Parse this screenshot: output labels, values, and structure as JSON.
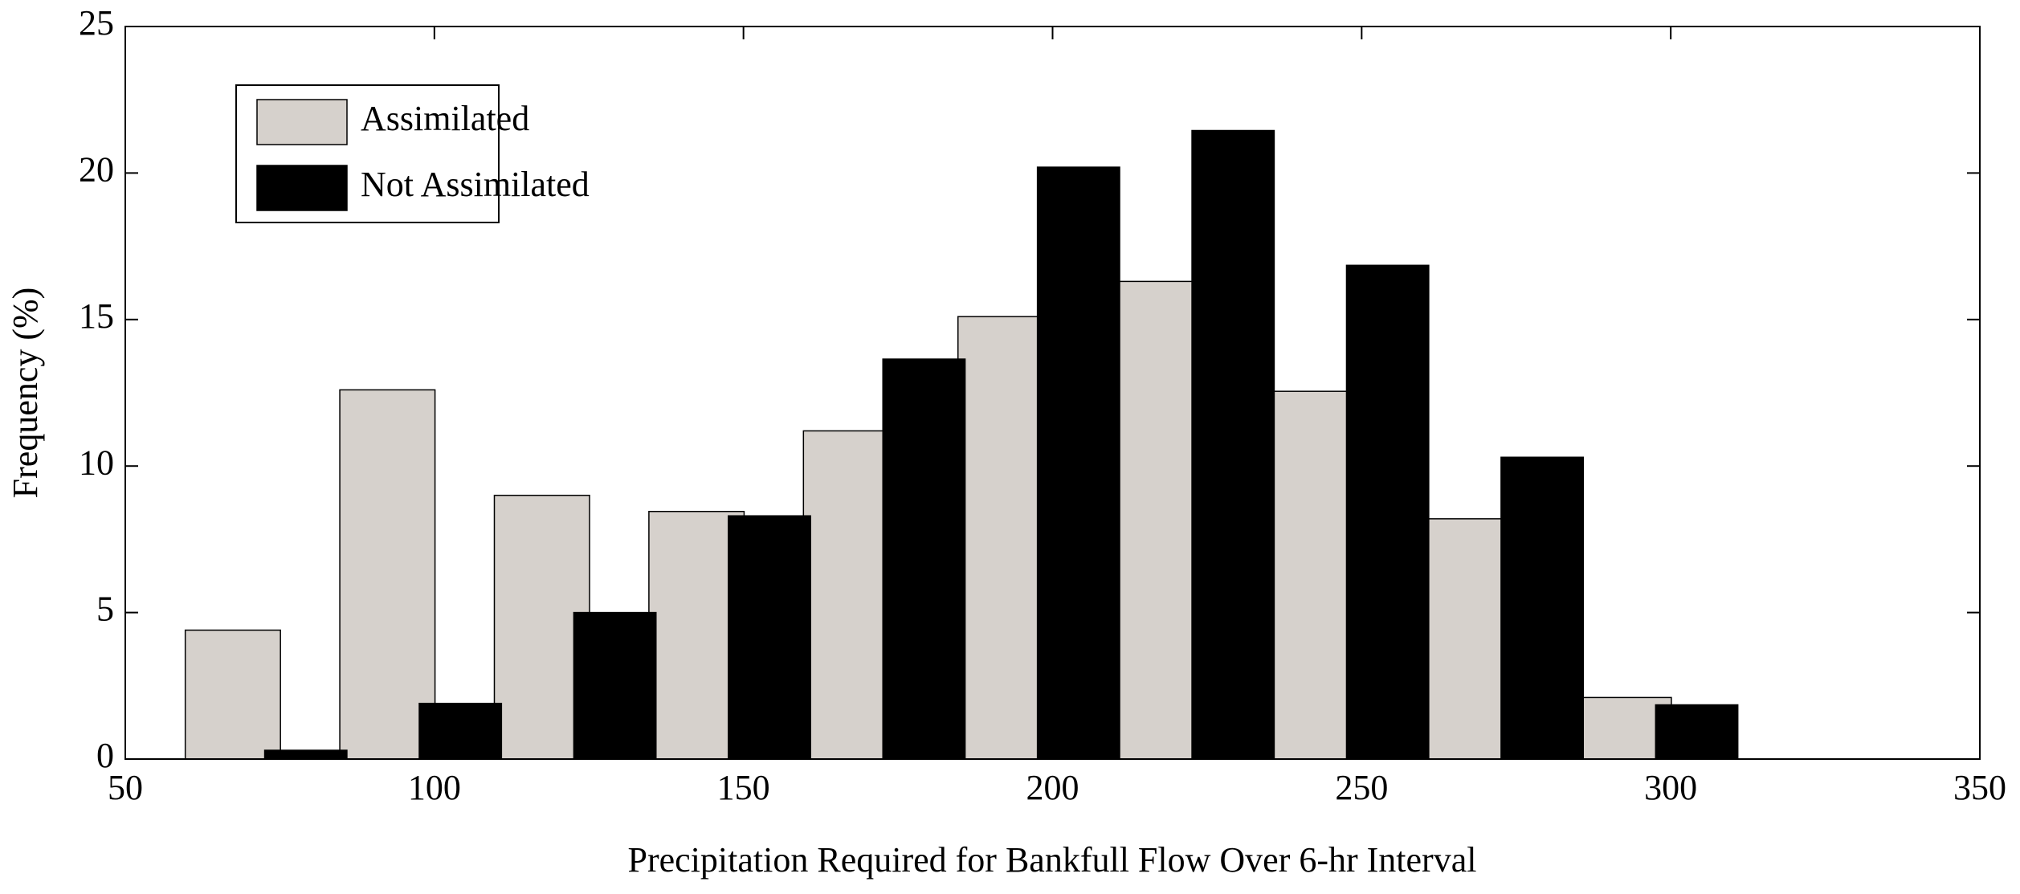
{
  "chart_data": {
    "type": "bar",
    "x_label": "Precipitation Required for Bankfull Flow Over 6-hr Interval",
    "y_label": "Frequency (%)",
    "x": [
      75,
      100,
      125,
      150,
      175,
      200,
      225,
      250,
      275,
      300
    ],
    "series": [
      {
        "name": "Assimilated",
        "color": "#d6d1cc",
        "values": [
          4.4,
          12.6,
          9.0,
          8.45,
          11.2,
          15.1,
          16.3,
          12.55,
          8.2,
          2.1
        ]
      },
      {
        "name": "Not Assimilated",
        "color": "#000000",
        "values": [
          0.3,
          1.9,
          5.0,
          8.3,
          13.65,
          20.2,
          21.45,
          16.85,
          10.3,
          1.85
        ]
      }
    ],
    "xlim": [
      50,
      350
    ],
    "xticks": [
      50,
      100,
      150,
      200,
      250,
      300,
      350
    ],
    "ylim": [
      0,
      25
    ],
    "yticks": [
      0,
      5,
      10,
      15,
      20,
      25
    ],
    "legend": "upper-left"
  }
}
